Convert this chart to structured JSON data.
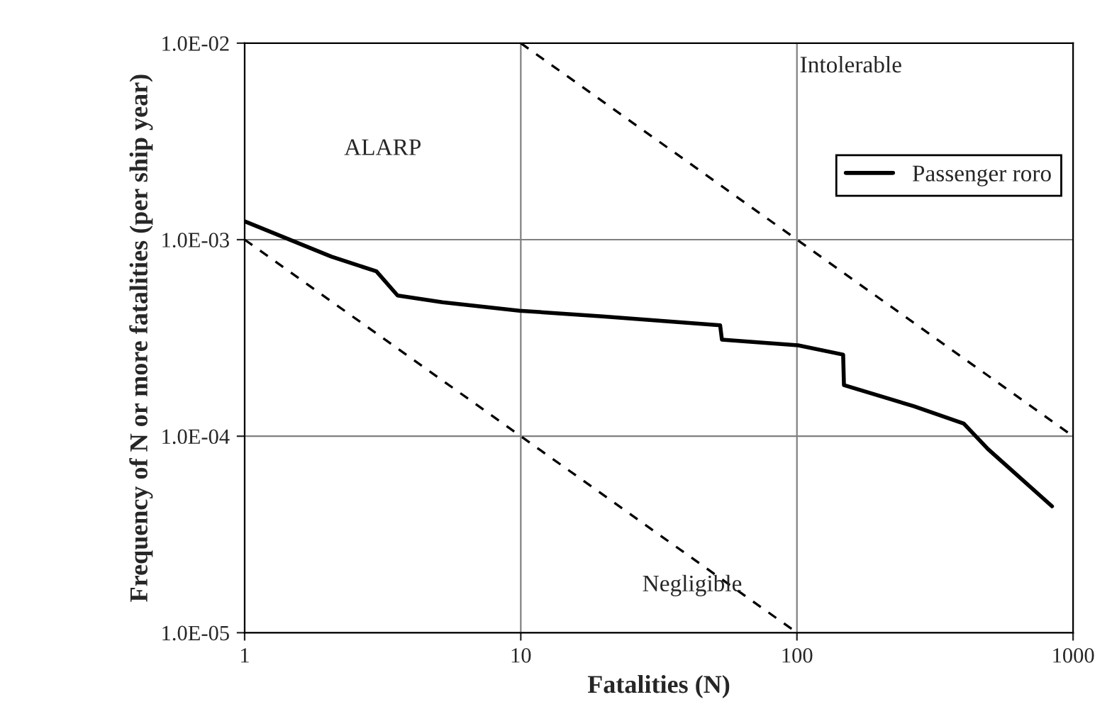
{
  "chart_data": {
    "type": "line",
    "xlabel": "Fatalities (N)",
    "ylabel": "Frequency of N or more fatalities (per ship year)",
    "log": "xy",
    "xlim": [
      1,
      1000
    ],
    "ylim": [
      1e-05,
      0.01
    ],
    "xticks": [
      1,
      10,
      100,
      1000
    ],
    "yticks": [
      {
        "value": 1e-05,
        "label": "1.0E-05"
      },
      {
        "value": 0.0001,
        "label": "1.0E-04"
      },
      {
        "value": 0.001,
        "label": "1.0E-03"
      },
      {
        "value": 0.01,
        "label": "1.0E-02"
      }
    ],
    "grid": true,
    "legend": "top right",
    "series": [
      {
        "name": "Passenger roro",
        "color": "#000000",
        "line_style": "solid",
        "x": [
          1,
          2.06,
          3.0,
          3.58,
          5.2,
          9.9,
          19.8,
          52.7,
          53.5,
          101,
          147,
          148,
          265,
          402,
          492,
          839
        ],
        "values": [
          0.00124,
          0.00082,
          0.00069,
          0.00052,
          0.00048,
          0.000435,
          0.000407,
          0.000367,
          0.00031,
          0.00029,
          0.00026,
          0.000182,
          0.000142,
          0.000116,
          8.6e-05,
          4.4e-05
        ]
      },
      {
        "color": "#000000",
        "line_style": "dashed",
        "x": [
          10,
          1000
        ],
        "values": [
          0.01,
          0.0001
        ]
      },
      {
        "color": "#000000",
        "line_style": "dashed",
        "x": [
          1,
          100
        ],
        "values": [
          0.001,
          1e-05
        ]
      }
    ],
    "annotations": [
      "ALARP",
      "Intolerable",
      "Negligible"
    ]
  }
}
